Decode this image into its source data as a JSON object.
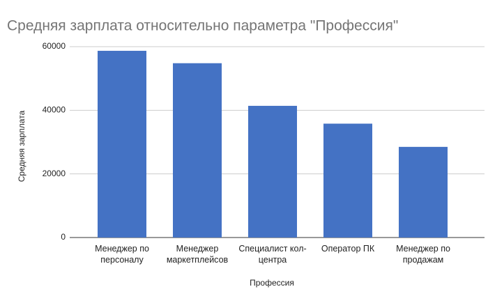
{
  "chart_data": {
    "type": "bar",
    "title": "Средняя зарплата относительно параметра \"Профессия\"",
    "x_label": "Профессия",
    "y_label": "Средняя зарплата",
    "categories": [
      "Менеджер по персоналу",
      "Менеджер маркетплейсов",
      "Специалист кол-центра",
      "Оператор ПК",
      "Менеджер по продажам"
    ],
    "values": [
      58700,
      54800,
      41400,
      35800,
      28500
    ],
    "color": "#4472c4",
    "ylim": [
      0,
      60000
    ],
    "yticks": [
      0,
      20000,
      40000,
      60000
    ],
    "grid": true
  }
}
